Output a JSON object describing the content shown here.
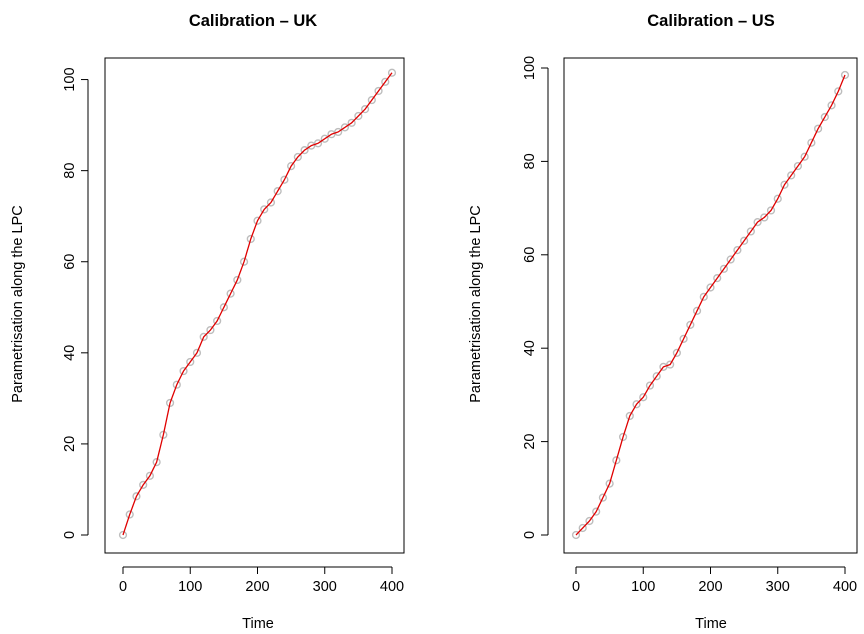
{
  "chart_data": [
    {
      "type": "scatter",
      "title": "Calibration – UK",
      "xlabel": "Time",
      "ylabel": "Parametrisation along the LPC",
      "xlim": [
        0,
        400
      ],
      "ylim": [
        0,
        101
      ],
      "xticks": [
        0,
        100,
        200,
        300,
        400
      ],
      "yticks": [
        0,
        20,
        40,
        60,
        80,
        100
      ],
      "colors": {
        "points": "#bdbdbd",
        "line": "#e00000"
      },
      "series": [
        {
          "x": [
            0,
            10,
            20,
            30,
            40,
            50,
            60,
            70,
            80,
            90,
            100,
            110,
            120,
            130,
            140,
            150,
            160,
            170,
            180,
            190,
            200,
            210,
            220,
            230,
            240,
            250,
            260,
            270,
            280,
            290,
            300,
            310,
            320,
            330,
            340,
            350,
            360,
            370,
            380,
            390,
            400
          ],
          "y": [
            0,
            4.5,
            8.5,
            11,
            13,
            16,
            22,
            29,
            33,
            36,
            38,
            40,
            43.5,
            45,
            47,
            50,
            53,
            56,
            60,
            65,
            69,
            71.5,
            73,
            75.5,
            78,
            81,
            83,
            84.5,
            85.5,
            86,
            87,
            88,
            88.5,
            89.5,
            90.5,
            92,
            93.5,
            95.5,
            97.5,
            99.5,
            101.5
          ]
        }
      ]
    },
    {
      "type": "scatter",
      "title": "Calibration – US",
      "xlabel": "Time",
      "ylabel": "Parametrisation along the LPC",
      "xlim": [
        0,
        400
      ],
      "ylim": [
        0,
        98.5
      ],
      "xticks": [
        0,
        100,
        200,
        300,
        400
      ],
      "yticks": [
        0,
        20,
        40,
        60,
        80,
        100
      ],
      "colors": {
        "points": "#bdbdbd",
        "line": "#e00000"
      },
      "series": [
        {
          "x": [
            0,
            10,
            20,
            30,
            40,
            50,
            60,
            70,
            80,
            90,
            100,
            110,
            120,
            130,
            140,
            150,
            160,
            170,
            180,
            190,
            200,
            210,
            220,
            230,
            240,
            250,
            260,
            270,
            280,
            290,
            300,
            310,
            320,
            330,
            340,
            350,
            360,
            370,
            380,
            390,
            400
          ],
          "y": [
            0,
            1.5,
            3,
            5,
            8,
            11,
            16,
            21,
            25.5,
            28,
            29.5,
            32,
            34,
            36,
            36.5,
            39,
            42,
            45,
            48,
            51,
            53,
            55,
            57,
            59,
            61,
            63,
            65,
            67,
            68,
            69.5,
            72,
            75,
            77,
            79,
            81,
            84,
            87,
            89.5,
            92,
            95,
            98.5
          ]
        }
      ]
    }
  ]
}
